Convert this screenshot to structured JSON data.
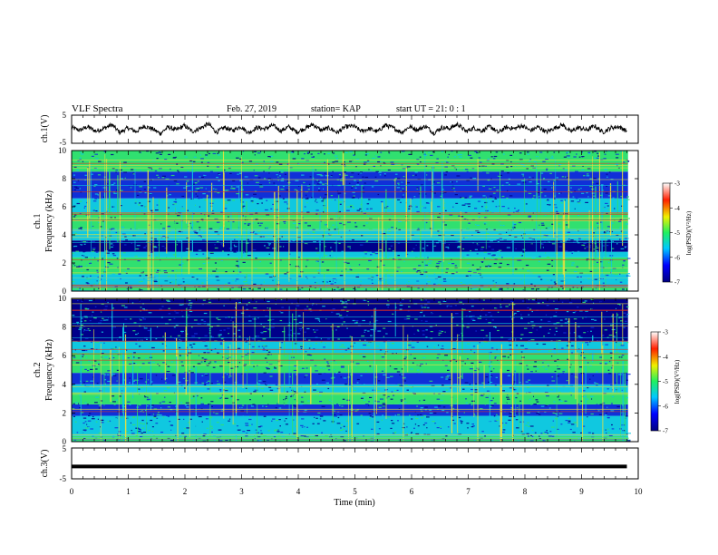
{
  "header": {
    "title": "VLF Spectra",
    "date": "Feb. 27, 2019",
    "station": "station= KAP",
    "start_time": "start UT =  21: 0  : 1"
  },
  "chart_data": [
    {
      "type": "line",
      "id": "ch1_waveform",
      "ylabel": "ch.1(V)",
      "ylim": [
        -5,
        5
      ],
      "yticks": [
        "5",
        "-5"
      ],
      "x_range_min": [
        0,
        9.8
      ],
      "series": [
        {
          "values": [
            0.6,
            -0.4,
            0.9,
            -0.7,
            0.3,
            1.6,
            -1.2,
            0.5,
            -0.9,
            1.1,
            0.2,
            -1.5,
            0.8,
            -0.3,
            1.3,
            -0.8,
            0.4,
            1.9,
            -1.1,
            0.7,
            -0.5,
            1.0,
            -1.3,
            0.6,
            0.1,
            1.4,
            -0.6,
            0.9,
            -1.0,
            0.3,
            1.7,
            -0.4,
            0.5,
            -1.2,
            0.8,
            1.2,
            -0.7,
            0.2,
            -0.9,
            1.5,
            0.4,
            -1.1,
            0.9,
            -0.2,
            1.1,
            -1.4,
            0.6,
            0.3,
            1.8,
            -0.8,
            0.5,
            -0.6,
            1.0,
            -1.2,
            0.7,
            0.2,
            1.3,
            -0.5,
            0.8,
            -1.0,
            0.4,
            1.6,
            -0.9,
            0.6,
            -0.3,
            1.2,
            -1.1,
            0.5,
            0.9,
            -0.7
          ]
        }
      ]
    },
    {
      "type": "heatmap",
      "id": "ch1_spectrogram",
      "ylabel": "Frequency (kHz)",
      "channel_label": "ch.1",
      "ylim": [
        0,
        10
      ],
      "yticks": [
        "0",
        "2",
        "4",
        "6",
        "8",
        "10"
      ],
      "colorbar": {
        "label": "log(PSD)(V²/Hz)",
        "ticks": [
          "-3",
          "-4",
          "-5",
          "-6",
          "-7"
        ],
        "range": [
          -7,
          -3
        ]
      },
      "bands_khz": [
        {
          "from": 0.0,
          "to": 0.3,
          "level": "green"
        },
        {
          "from": 0.3,
          "to": 1.2,
          "level": "cyan"
        },
        {
          "from": 1.2,
          "to": 2.4,
          "level": "green"
        },
        {
          "from": 2.4,
          "to": 2.8,
          "level": "cyan"
        },
        {
          "from": 2.8,
          "to": 3.6,
          "level": "dark-blue"
        },
        {
          "from": 3.6,
          "to": 4.4,
          "level": "cyan"
        },
        {
          "from": 4.4,
          "to": 5.6,
          "level": "green"
        },
        {
          "from": 5.6,
          "to": 6.6,
          "level": "cyan"
        },
        {
          "from": 6.6,
          "to": 8.5,
          "level": "blue"
        },
        {
          "from": 8.5,
          "to": 10.0,
          "level": "green"
        }
      ]
    },
    {
      "type": "heatmap",
      "id": "ch2_spectrogram",
      "ylabel": "Frequency (kHz)",
      "channel_label": "ch.2",
      "ylim": [
        0,
        10
      ],
      "yticks": [
        "0",
        "2",
        "4",
        "6",
        "8",
        "10"
      ],
      "colorbar": {
        "label": "log(PSD)(V²/Hz)",
        "ticks": [
          "-3",
          "-4",
          "-5",
          "-6",
          "-7"
        ],
        "range": [
          -7,
          -3
        ]
      },
      "bands_khz": [
        {
          "from": 0.0,
          "to": 0.4,
          "level": "green"
        },
        {
          "from": 0.4,
          "to": 1.8,
          "level": "cyan"
        },
        {
          "from": 1.8,
          "to": 2.6,
          "level": "blue"
        },
        {
          "from": 2.6,
          "to": 3.4,
          "level": "green"
        },
        {
          "from": 3.4,
          "to": 4.0,
          "level": "cyan"
        },
        {
          "from": 4.0,
          "to": 4.8,
          "level": "blue"
        },
        {
          "from": 4.8,
          "to": 6.2,
          "level": "green"
        },
        {
          "from": 6.2,
          "to": 7.0,
          "level": "cyan"
        },
        {
          "from": 7.0,
          "to": 10.0,
          "level": "dark-blue"
        }
      ]
    },
    {
      "type": "line",
      "id": "ch3_waveform",
      "ylabel": "ch.3(V)",
      "ylim": [
        -5,
        5
      ],
      "yticks": [
        "5",
        "-5"
      ],
      "x_range_min": [
        0,
        9.8
      ],
      "series": [
        {
          "values": [
            -1.0,
            -1.0
          ]
        }
      ]
    }
  ],
  "xaxis": {
    "label": "Time (min)",
    "lim": [
      0,
      10
    ],
    "ticks": [
      "0",
      "1",
      "2",
      "3",
      "4",
      "5",
      "6",
      "7",
      "8",
      "9",
      "10"
    ]
  },
  "colors": {
    "dark-blue": "#00008a",
    "blue": "#1030d8",
    "cyan": "#10c8e0",
    "green": "#30e070",
    "yellow-line": "#e8e040",
    "red-line": "#e03020"
  }
}
